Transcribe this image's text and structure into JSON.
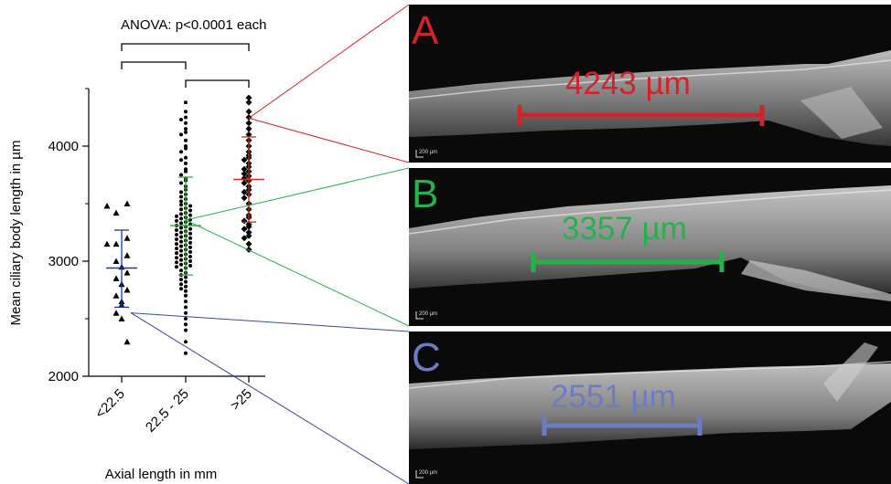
{
  "chart_data": {
    "type": "scatter",
    "title": "ANOVA: p<0.0001 each",
    "xlabel": "Axial length in mm",
    "ylabel": "Mean ciliary body length in µm",
    "categories": [
      "<22.5",
      "22.5 - 25",
      ">25"
    ],
    "yticks": [
      2000,
      3000,
      4000
    ],
    "ylim": [
      2000,
      4500
    ],
    "series": [
      {
        "name": "<22.5",
        "marker": "triangle",
        "values": [
          3500,
          3480,
          3420,
          3200,
          3150,
          3150,
          3050,
          3000,
          2950,
          2900,
          2850,
          2800,
          2750,
          2700,
          2650,
          2620,
          2550,
          2500,
          2300
        ],
        "mean": 2940,
        "sd_low": 2600,
        "sd_high": 3270
      },
      {
        "name": "22.5 - 25",
        "marker": "circle",
        "values": [
          4380,
          4300,
          4250,
          4230,
          4200,
          4150,
          4120,
          4100,
          4050,
          4000,
          3980,
          3950,
          3900,
          3880,
          3850,
          3800,
          3780,
          3750,
          3720,
          3700,
          3680,
          3650,
          3620,
          3600,
          3580,
          3560,
          3540,
          3520,
          3500,
          3490,
          3480,
          3460,
          3450,
          3440,
          3420,
          3410,
          3400,
          3390,
          3380,
          3370,
          3360,
          3350,
          3340,
          3330,
          3320,
          3310,
          3300,
          3290,
          3280,
          3270,
          3260,
          3250,
          3240,
          3230,
          3220,
          3210,
          3200,
          3190,
          3180,
          3170,
          3160,
          3150,
          3140,
          3130,
          3120,
          3110,
          3100,
          3090,
          3080,
          3070,
          3060,
          3050,
          3040,
          3030,
          3020,
          3010,
          3000,
          2990,
          2980,
          2970,
          2960,
          2950,
          2940,
          2920,
          2900,
          2880,
          2860,
          2840,
          2820,
          2800,
          2780,
          2760,
          2740,
          2700,
          2650,
          2600,
          2550,
          2500,
          2450,
          2400,
          2300,
          2200
        ],
        "mean": 3310,
        "sd_low": 2880,
        "sd_high": 3730
      },
      {
        "name": ">25",
        "marker": "diamond",
        "values": [
          4420,
          4380,
          4300,
          4250,
          4200,
          4150,
          4100,
          4050,
          4000,
          3950,
          3920,
          3900,
          3880,
          3850,
          3820,
          3800,
          3780,
          3760,
          3740,
          3720,
          3700,
          3680,
          3650,
          3620,
          3600,
          3580,
          3550,
          3500,
          3450,
          3400,
          3380,
          3350,
          3320,
          3300,
          3280,
          3250,
          3220,
          3200,
          3150,
          3100
        ],
        "mean": 3710,
        "sd_low": 3340,
        "sd_high": 4080
      }
    ],
    "comparison_brackets": [
      {
        "from": "<22.5",
        "to": ">25"
      },
      {
        "from": "<22.5",
        "to": "22.5 - 25"
      },
      {
        "from": "22.5 - 25",
        "to": ">25"
      }
    ],
    "callouts": [
      {
        "category": ">25",
        "value": 4243,
        "panel": "A"
      },
      {
        "category": "22.5 - 25",
        "value": 3357,
        "panel": "B"
      },
      {
        "category": "<22.5",
        "value": 2551,
        "panel": "C"
      }
    ]
  },
  "panels": [
    {
      "letter": "A",
      "measurement": "4243 µm",
      "color": "#d1232a",
      "scale": "200 µm"
    },
    {
      "letter": "B",
      "measurement": "3357 µm",
      "color": "#26b24b",
      "scale": "200 µm"
    },
    {
      "letter": "C",
      "measurement": "2551 µm",
      "color": "#6d7cc0",
      "scale": "200 µm"
    }
  ],
  "colors": {
    "group1_bar": "#1a3a9a",
    "group2_bar": "#2fb53a",
    "group3_bar": "#d12a1f",
    "red": "#d1232a",
    "green": "#26b24b",
    "blue_line": "#3b4a8c"
  }
}
